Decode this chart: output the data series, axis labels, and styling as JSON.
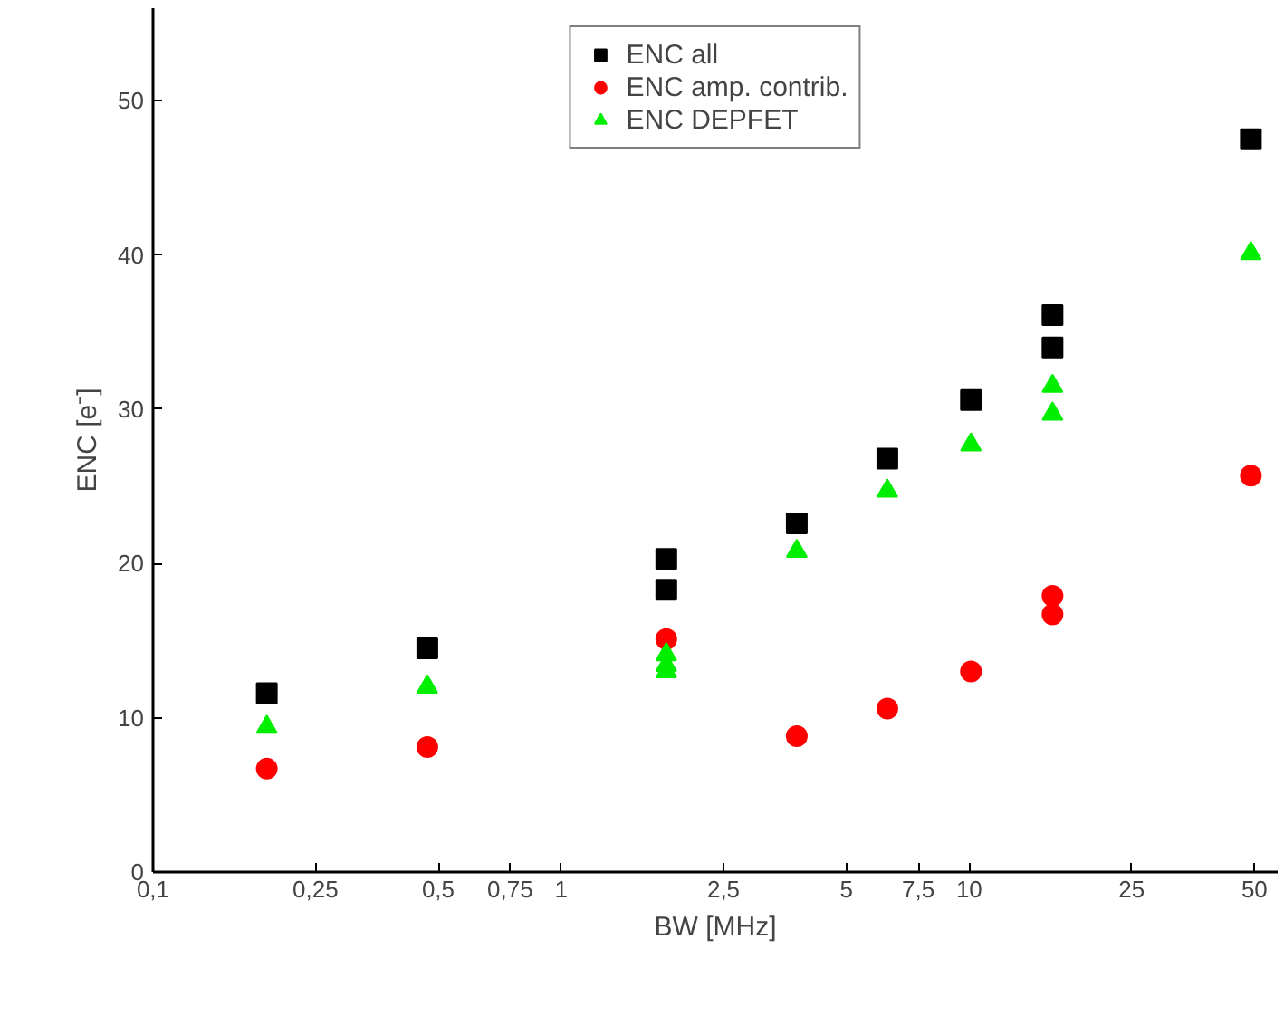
{
  "chart_data": {
    "type": "scatter",
    "xlabel": "BW [MHz]",
    "ylabel": "ENC [e⁻]",
    "log": "x",
    "xlim": [
      0.1,
      57
    ],
    "ylim": [
      0,
      56
    ],
    "xticks": [
      {
        "value": 0.1,
        "label": "0,1"
      },
      {
        "value": 0.25,
        "label": "0,25"
      },
      {
        "value": 0.5,
        "label": "0,5"
      },
      {
        "value": 0.75,
        "label": "0,75"
      },
      1,
      {
        "value": 2.5,
        "label": "2,5"
      },
      5,
      {
        "value": 7.5,
        "label": "7,5"
      },
      10,
      25,
      50
    ],
    "yticks": [
      0,
      10,
      20,
      30,
      40,
      50
    ],
    "grid": false,
    "legend": "top",
    "series": [
      {
        "name": "ENC all",
        "color": "#000000",
        "marker": "square",
        "x": [
          0.19,
          0.47,
          1.81,
          1.81,
          3.78,
          6.3,
          10.1,
          16,
          16,
          49
        ],
        "values": [
          11.6,
          14.5,
          20.3,
          18.3,
          22.6,
          26.8,
          30.6,
          36.1,
          34.0,
          47.5
        ]
      },
      {
        "name": "ENC amp. contrib.",
        "color": "#ff0000",
        "marker": "circle",
        "x": [
          0.19,
          0.47,
          1.81,
          3.78,
          6.3,
          10.1,
          16,
          16,
          49
        ],
        "values": [
          6.7,
          8.1,
          15.1,
          8.8,
          10.6,
          13.0,
          17.9,
          16.7,
          25.7
        ]
      },
      {
        "name": "ENC DEPFET",
        "color": "#00ee00",
        "marker": "triangle",
        "x": [
          0.19,
          0.47,
          1.81,
          1.81,
          1.81,
          3.78,
          6.3,
          10.1,
          16,
          16,
          49
        ],
        "values": [
          9.4,
          12.0,
          14.1,
          13.4,
          13.0,
          20.8,
          24.7,
          27.7,
          31.5,
          29.7,
          40.1
        ]
      }
    ]
  }
}
